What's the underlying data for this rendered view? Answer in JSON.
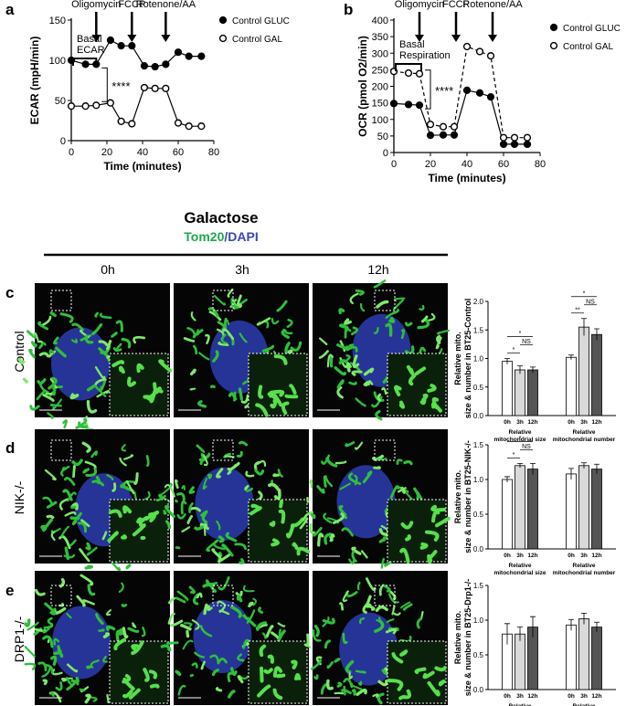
{
  "figure": {
    "panel_labels": [
      "a",
      "b",
      "c",
      "d",
      "e"
    ],
    "condition": "Galactose",
    "stain": "Tom20",
    "counterstain": "/DAPI",
    "columns": [
      "0h",
      "3h",
      "12h"
    ],
    "rows": [
      "Control",
      "NIK-/-",
      "DRP1-/-"
    ]
  },
  "chart_data": [
    {
      "type": "line",
      "ylabel": "ECAR (mpH/min)",
      "xlabel": "Time (minutes)",
      "x": [
        0,
        8,
        14,
        22,
        28,
        34,
        41,
        47,
        53,
        60,
        66,
        73
      ],
      "series": [
        {
          "name": "Control GLUC",
          "color": "#000000",
          "marker": "filled",
          "line_style": "solid",
          "values": [
            100,
            95,
            95,
            125,
            118,
            118,
            93,
            92,
            95,
            110,
            105,
            105
          ]
        },
        {
          "name": "Control GAL",
          "color": "#000000",
          "marker": "open",
          "line_style": "solid",
          "values": [
            43,
            43,
            44,
            47,
            24,
            21,
            66,
            65,
            65,
            22,
            18,
            18
          ]
        }
      ],
      "xlim": [
        0,
        80
      ],
      "xticks": [
        0,
        20,
        40,
        60,
        80
      ],
      "ylim": [
        0,
        150
      ],
      "yticks": [
        0,
        50,
        100,
        150
      ],
      "annotations": [
        {
          "text": "Oligomycin",
          "x": 14
        },
        {
          "text": "FCCP",
          "x": 34
        },
        {
          "text": "Rotenone/AA",
          "x": 53
        }
      ],
      "bracket": {
        "text": "Basal ECAR",
        "x": [
          0,
          14
        ]
      },
      "stars": "****"
    },
    {
      "type": "line",
      "ylabel": "OCR (pmol O2/min)",
      "xlabel": "Time (minutes)",
      "x": [
        0,
        8,
        14,
        20,
        27,
        33,
        40,
        47,
        53,
        60,
        66,
        73
      ],
      "series": [
        {
          "name": "Control GLUC",
          "color": "#000000",
          "marker": "filled",
          "line_style": "solid",
          "values": [
            148,
            145,
            143,
            52,
            53,
            53,
            188,
            180,
            168,
            25,
            25,
            25
          ]
        },
        {
          "name": "Control GAL",
          "color": "#000000",
          "marker": "open",
          "line_style": "dashed",
          "values": [
            245,
            240,
            238,
            85,
            78,
            78,
            320,
            305,
            292,
            45,
            45,
            45
          ]
        }
      ],
      "xlim": [
        0,
        80
      ],
      "xticks": [
        0,
        20,
        40,
        60,
        80
      ],
      "ylim": [
        0,
        400
      ],
      "yticks": [
        0,
        50,
        100,
        150,
        200,
        250,
        300,
        350,
        400
      ],
      "annotations": [
        {
          "text": "Oligomycin",
          "x": 14
        },
        {
          "text": "FCCP",
          "x": 34
        },
        {
          "text": "Rotenone/AA",
          "x": 54
        }
      ],
      "bracket": {
        "text": "Basal Respiration",
        "x": [
          0,
          15
        ]
      },
      "stars": "****"
    },
    {
      "type": "bar",
      "ylabel": "Relative mito. size & number in BT25-Control",
      "categories": [
        "Relative mitochondrial size",
        "Relative mitochondrial number"
      ],
      "series": [
        {
          "name": "0h",
          "color": "#ffffff",
          "values": [
            0.95,
            1.02
          ],
          "errors": [
            0.05,
            0.04
          ]
        },
        {
          "name": "3h",
          "color": "#d9d9d9",
          "values": [
            0.8,
            1.55
          ],
          "errors": [
            0.07,
            0.15
          ]
        },
        {
          "name": "12h",
          "color": "#555555",
          "values": [
            0.8,
            1.42
          ],
          "errors": [
            0.05,
            0.1
          ]
        }
      ],
      "ylim": [
        0,
        2
      ],
      "yticks": [
        {
          "value": 0,
          "label": "0.0"
        },
        {
          "value": 0.5,
          "label": "0.5"
        },
        {
          "value": 1,
          "label": "1.0"
        },
        {
          "value": 1.5,
          "label": "1.5"
        },
        {
          "value": 2,
          "label": "2.0"
        }
      ],
      "significance": [
        [
          "*",
          "NS",
          "*"
        ],
        [
          "**",
          "NS",
          "*"
        ]
      ]
    },
    {
      "type": "bar",
      "ylabel": "Relative mito. size & number in BT25-NIK-/-",
      "categories": [
        "Relative mitochondrial size",
        "Relative mitochondrial number"
      ],
      "series": [
        {
          "name": "0h",
          "color": "#ffffff",
          "values": [
            1.0,
            1.08
          ],
          "errors": [
            0.04,
            0.08
          ]
        },
        {
          "name": "3h",
          "color": "#d9d9d9",
          "values": [
            1.2,
            1.2
          ],
          "errors": [
            0.03,
            0.04
          ]
        },
        {
          "name": "12h",
          "color": "#555555",
          "values": [
            1.15,
            1.15
          ],
          "errors": [
            0.08,
            0.07
          ]
        }
      ],
      "ylim": [
        0,
        1.5
      ],
      "yticks": [
        {
          "value": 0,
          "label": "0.0"
        },
        {
          "value": 0.5,
          "label": "0.5"
        },
        {
          "value": 1,
          "label": "1.0"
        },
        {
          "value": 1.5,
          "label": "1.5"
        }
      ],
      "significance": [
        [
          "*",
          "NS",
          "*"
        ]
      ]
    },
    {
      "type": "bar",
      "ylabel": "Relative mito. size & number in BT25-Drp1-/-",
      "categories": [
        "Relative mitochondrial size",
        "Relative mitochondrial number"
      ],
      "series": [
        {
          "name": "0h",
          "color": "#ffffff",
          "values": [
            0.8,
            0.93
          ],
          "errors": [
            0.15,
            0.08
          ]
        },
        {
          "name": "3h",
          "color": "#d9d9d9",
          "values": [
            0.8,
            1.02
          ],
          "errors": [
            0.1,
            0.08
          ]
        },
        {
          "name": "12h",
          "color": "#555555",
          "values": [
            0.9,
            0.9
          ],
          "errors": [
            0.15,
            0.07
          ]
        }
      ],
      "ylim": [
        0,
        1.5
      ],
      "yticks": [
        {
          "value": 0,
          "label": "0.0"
        },
        {
          "value": 0.5,
          "label": "0.5"
        },
        {
          "value": 1,
          "label": "1.0"
        },
        {
          "value": 1.5,
          "label": "1.5"
        }
      ]
    }
  ]
}
